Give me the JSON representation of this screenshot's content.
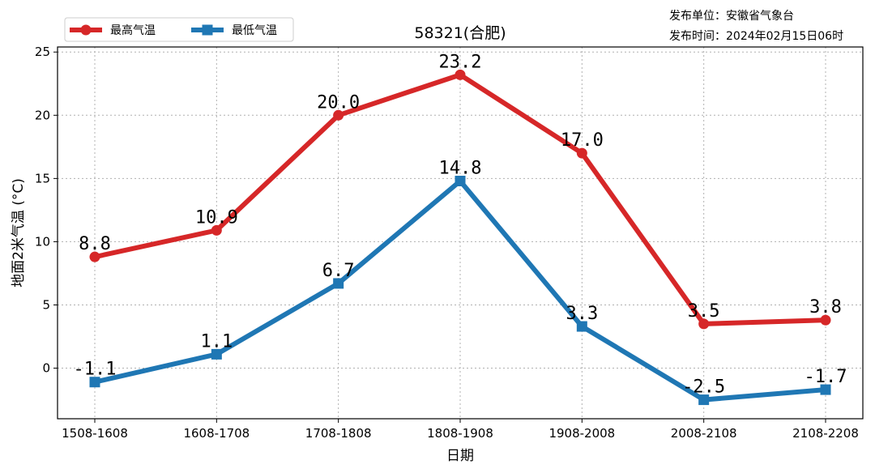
{
  "info": {
    "publisher": "发布单位：安徽省气象台",
    "publish_time": "发布时间：2024年02月15日06时"
  },
  "colors": {
    "high": "#d62728",
    "low": "#1f77b4"
  },
  "chart_data": {
    "type": "line",
    "title": "58321(合肥)",
    "xlabel": "日期",
    "ylabel": "地面2米气温 (°C)",
    "categories": [
      "1508-1608",
      "1608-1708",
      "1708-1808",
      "1808-1908",
      "1908-2008",
      "2008-2108",
      "2108-2208"
    ],
    "ylim": [
      -4,
      25.4
    ],
    "yticks": [
      0,
      5,
      10,
      15,
      20,
      25
    ],
    "grid": true,
    "legend_position": "top-left",
    "series": [
      {
        "name": "最高气温",
        "marker": "circle",
        "color": "#d62728",
        "values": [
          8.8,
          10.9,
          20.0,
          23.2,
          17.0,
          3.5,
          3.8
        ],
        "labels": [
          "8.8",
          "10.9",
          "20.0",
          "23.2",
          "17.0",
          "3.5",
          "3.8"
        ]
      },
      {
        "name": "最低气温",
        "marker": "square",
        "color": "#1f77b4",
        "values": [
          -1.1,
          1.1,
          6.7,
          14.8,
          3.3,
          -2.5,
          -1.7
        ],
        "labels": [
          "-1.1",
          "1.1",
          "6.7",
          "14.8",
          "3.3",
          "-2.5",
          "-1.7"
        ]
      }
    ]
  }
}
